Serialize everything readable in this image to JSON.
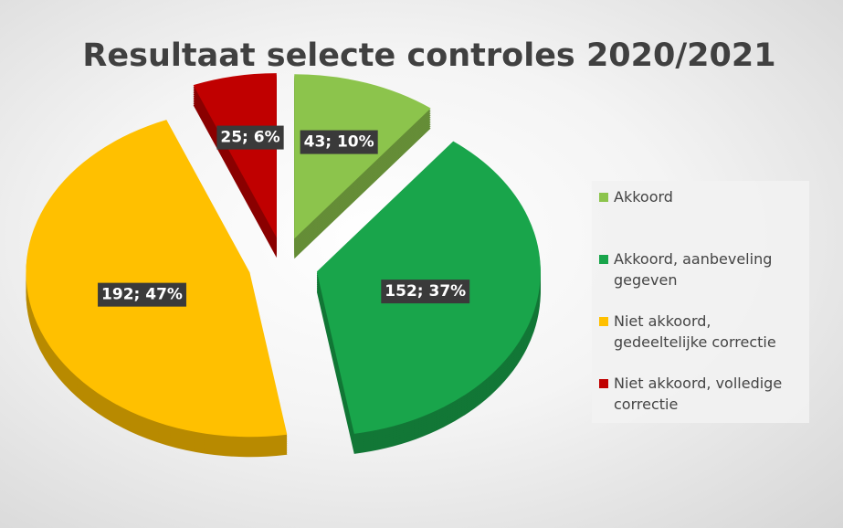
{
  "chart_data": {
    "type": "pie",
    "title": "Resultaat selecte controles 2020/2021",
    "categories": [
      "Akkoord",
      "Akkoord, aanbeveling gegeven",
      "Niet akkoord, gedeeltelijke correctie",
      "Niet akkoord, volledige correctie"
    ],
    "values": [
      43,
      152,
      192,
      25
    ],
    "value_labels": [
      "43; 10%",
      "152; 37%",
      "192; 47%",
      "25; 6%"
    ],
    "colors": [
      "#8cc44c",
      "#19a54b",
      "#ffc000",
      "#c00000"
    ],
    "legend": "right"
  }
}
